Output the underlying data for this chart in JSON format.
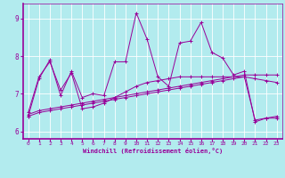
{
  "xlabel": "Windchill (Refroidissement éolien,°C)",
  "background_color": "#b2ebee",
  "line_color": "#990099",
  "grid_color": "#ffffff",
  "xlim": [
    -0.5,
    23.5
  ],
  "ylim": [
    5.8,
    9.4
  ],
  "yticks": [
    6,
    7,
    8,
    9
  ],
  "xticks": [
    0,
    1,
    2,
    3,
    4,
    5,
    6,
    7,
    8,
    9,
    10,
    11,
    12,
    13,
    14,
    15,
    16,
    17,
    18,
    19,
    20,
    21,
    22,
    23
  ],
  "series": [
    [
      6.4,
      7.4,
      7.9,
      6.95,
      7.6,
      6.9,
      7.0,
      6.95,
      7.85,
      7.85,
      9.15,
      8.45,
      7.45,
      7.2,
      8.35,
      8.4,
      8.9,
      8.1,
      7.95,
      7.5,
      7.6,
      6.25,
      6.35,
      6.35
    ],
    [
      6.5,
      7.45,
      7.85,
      7.1,
      7.55,
      6.6,
      6.65,
      6.75,
      6.9,
      7.05,
      7.2,
      7.3,
      7.35,
      7.4,
      7.45,
      7.45,
      7.45,
      7.45,
      7.45,
      7.45,
      7.45,
      7.4,
      7.35,
      7.3
    ],
    [
      6.45,
      6.55,
      6.6,
      6.65,
      6.7,
      6.75,
      6.8,
      6.85,
      6.9,
      6.95,
      7.0,
      7.05,
      7.1,
      7.15,
      7.2,
      7.25,
      7.3,
      7.35,
      7.4,
      7.45,
      7.5,
      7.5,
      7.5,
      7.5
    ],
    [
      6.4,
      6.5,
      6.55,
      6.6,
      6.65,
      6.7,
      6.75,
      6.8,
      6.85,
      6.9,
      6.95,
      7.0,
      7.05,
      7.1,
      7.15,
      7.2,
      7.25,
      7.3,
      7.35,
      7.4,
      7.45,
      6.3,
      6.35,
      6.4
    ]
  ],
  "marker": "+"
}
